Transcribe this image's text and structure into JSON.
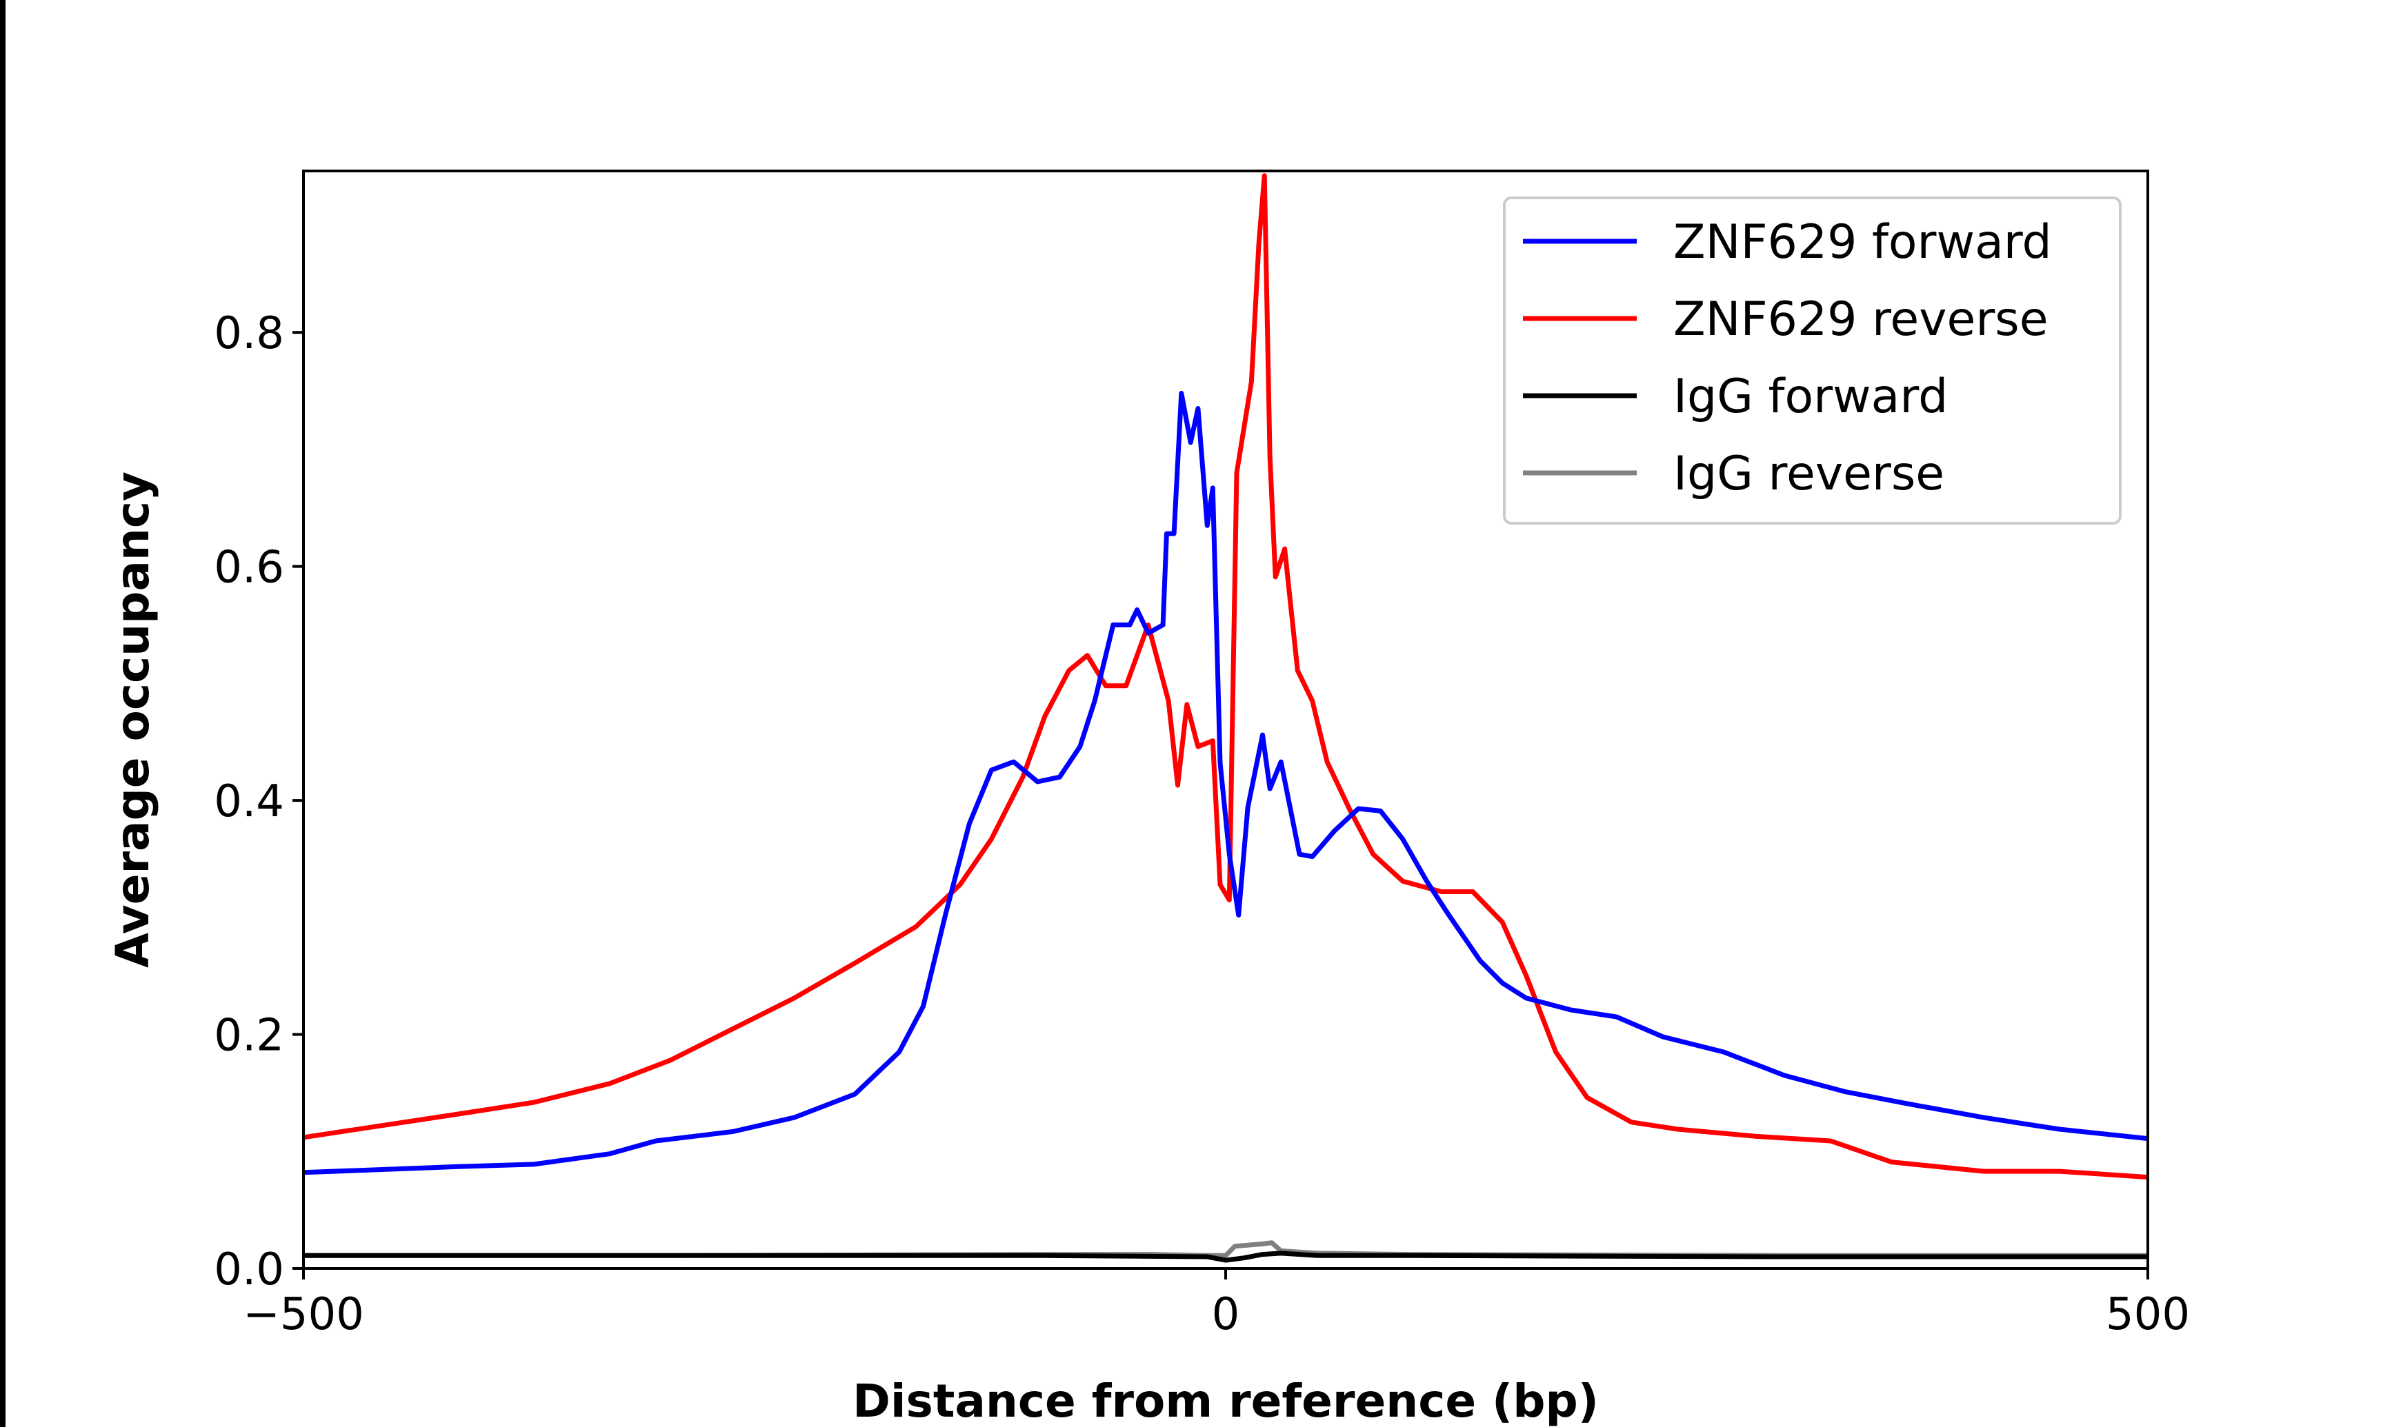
{
  "chart_data": {
    "type": "line",
    "title": "",
    "xlabel": "Distance from reference (bp)",
    "ylabel": "Average occupancy",
    "xlim": [
      -500,
      500
    ],
    "ylim": [
      0,
      0.938
    ],
    "xticks": [
      -500,
      0,
      500
    ],
    "xtick_labels": [
      "−500",
      "0",
      "500"
    ],
    "yticks": [
      0.0,
      0.2,
      0.4,
      0.6,
      0.8
    ],
    "ytick_labels": [
      "0.0",
      "0.2",
      "0.4",
      "0.6",
      "0.8"
    ],
    "grid": false,
    "legend_position": "top-right",
    "series": [
      {
        "name": "ZNF629 forward",
        "color": "#0000ff",
        "x": [
          -500,
          -416,
          -375,
          -334,
          -309,
          -267,
          -234,
          -201,
          -177,
          -164,
          -152,
          -139,
          -127,
          -115,
          -102,
          -90,
          -79,
          -71,
          -61,
          -52,
          -48,
          -42,
          -34,
          -32,
          -28,
          -24,
          -19,
          -15,
          -10,
          -7,
          -3,
          2,
          7,
          12,
          20,
          24,
          30,
          40,
          47,
          59,
          72,
          84,
          96,
          109,
          121,
          138,
          150,
          163,
          187,
          212,
          237,
          270,
          303,
          336,
          369,
          411,
          452,
          500
        ],
        "y": [
          0.082,
          0.087,
          0.089,
          0.098,
          0.109,
          0.117,
          0.129,
          0.149,
          0.185,
          0.224,
          0.302,
          0.38,
          0.426,
          0.433,
          0.416,
          0.42,
          0.446,
          0.485,
          0.55,
          0.55,
          0.563,
          0.543,
          0.55,
          0.628,
          0.628,
          0.748,
          0.706,
          0.735,
          0.635,
          0.667,
          0.432,
          0.354,
          0.302,
          0.394,
          0.456,
          0.41,
          0.433,
          0.354,
          0.352,
          0.374,
          0.393,
          0.391,
          0.367,
          0.331,
          0.302,
          0.263,
          0.244,
          0.231,
          0.221,
          0.215,
          0.198,
          0.185,
          0.165,
          0.151,
          0.141,
          0.129,
          0.119,
          0.111
        ]
      },
      {
        "name": "ZNF629 reverse",
        "color": "#ff0000",
        "x": [
          -500,
          -458,
          -416,
          -375,
          -334,
          -301,
          -267,
          -234,
          -201,
          -168,
          -144,
          -127,
          -110,
          -98,
          -85,
          -75,
          -65,
          -54,
          -42,
          -31,
          -26,
          -21,
          -15,
          -7,
          -3,
          2,
          6,
          10,
          14,
          18,
          21,
          24,
          27,
          32,
          39,
          47,
          55,
          67,
          80,
          96,
          117,
          134,
          150,
          163,
          179,
          196,
          220,
          245,
          287,
          328,
          361,
          411,
          452,
          500
        ],
        "y": [
          0.112,
          0.122,
          0.132,
          0.142,
          0.158,
          0.178,
          0.205,
          0.231,
          0.261,
          0.292,
          0.328,
          0.367,
          0.42,
          0.472,
          0.511,
          0.524,
          0.498,
          0.498,
          0.55,
          0.485,
          0.413,
          0.482,
          0.446,
          0.451,
          0.328,
          0.315,
          0.68,
          0.719,
          0.758,
          0.876,
          0.934,
          0.693,
          0.591,
          0.615,
          0.511,
          0.485,
          0.433,
          0.393,
          0.354,
          0.331,
          0.322,
          0.322,
          0.296,
          0.25,
          0.185,
          0.146,
          0.125,
          0.119,
          0.113,
          0.109,
          0.091,
          0.083,
          0.083,
          0.078
        ]
      },
      {
        "name": "IgG forward",
        "color": "#000000",
        "x": [
          -500,
          -300,
          -100,
          -10,
          0,
          10,
          20,
          30,
          50,
          100,
          300,
          500
        ],
        "y": [
          0.011,
          0.011,
          0.011,
          0.01,
          0.007,
          0.009,
          0.012,
          0.013,
          0.011,
          0.011,
          0.01,
          0.01
        ]
      },
      {
        "name": "IgG reverse",
        "color": "#808080",
        "x": [
          -500,
          -300,
          -100,
          -40,
          -10,
          0,
          5,
          20,
          25,
          30,
          50,
          100,
          300,
          500
        ],
        "y": [
          0.011,
          0.011,
          0.012,
          0.012,
          0.011,
          0.011,
          0.019,
          0.021,
          0.022,
          0.015,
          0.013,
          0.012,
          0.011,
          0.011
        ]
      }
    ]
  }
}
